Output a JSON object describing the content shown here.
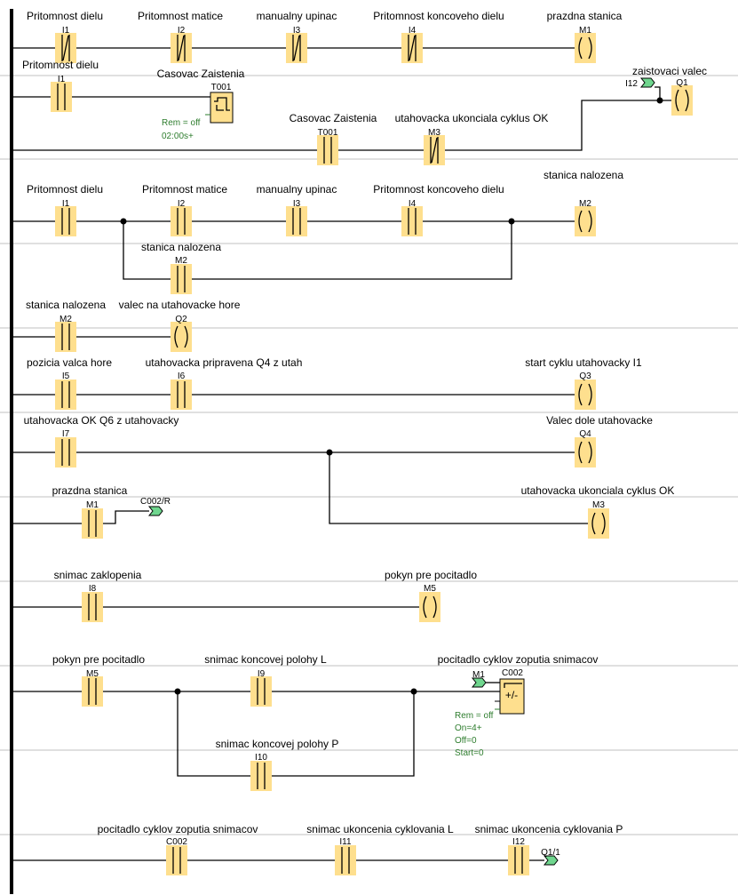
{
  "colors": {
    "element_fill": "#fedf8e",
    "connector_fill": "#6fd68e",
    "parameter_text": "#2e7d2e",
    "separator": "#c0c0c0"
  },
  "rungs": [
    {
      "elements": [
        {
          "kind": "contact-nc",
          "address": "I1",
          "label": "Pritomnost dielu"
        },
        {
          "kind": "contact-nc",
          "address": "I2",
          "label": "Pritomnost matice"
        },
        {
          "kind": "contact-nc",
          "address": "I3",
          "label": "manualny upinac"
        },
        {
          "kind": "contact-nc",
          "address": "I4",
          "label": "Pritomnost koncoveho dielu"
        },
        {
          "kind": "coil",
          "address": "M1",
          "label": "prazdna stanica"
        }
      ]
    },
    {
      "elements": [
        {
          "kind": "contact-no",
          "address": "I1",
          "label": "Pritomnost dielu"
        },
        {
          "kind": "timer",
          "address": "T001",
          "label": "Casovac Zaistenia",
          "params": [
            "Rem = off",
            "02:00s+"
          ]
        }
      ]
    },
    {
      "elements": [
        {
          "kind": "contact-no",
          "address": "T001",
          "label": "Casovac Zaistenia"
        },
        {
          "kind": "contact-nc",
          "address": "M3",
          "label": "utahovacka ukonciala cyklus OK"
        },
        {
          "kind": "connector",
          "address": "I12"
        },
        {
          "kind": "coil",
          "address": "Q1",
          "label": "zaistovaci valec"
        }
      ]
    },
    {
      "elements": [
        {
          "kind": "contact-no",
          "address": "I1",
          "label": "Pritomnost dielu"
        },
        {
          "kind": "contact-no",
          "address": "I2",
          "label": "Pritomnost matice"
        },
        {
          "kind": "contact-no",
          "address": "I3",
          "label": "manualny upinac"
        },
        {
          "kind": "contact-no",
          "address": "I4",
          "label": "Pritomnost koncoveho dielu"
        },
        {
          "kind": "contact-no",
          "address": "M2",
          "label": "stanica nalozena"
        },
        {
          "kind": "coil",
          "address": "M2",
          "label": "stanica nalozena"
        }
      ]
    },
    {
      "elements": [
        {
          "kind": "contact-no",
          "address": "M2",
          "label": "stanica nalozena"
        },
        {
          "kind": "coil",
          "address": "Q2",
          "label": "valec na utahovacke hore"
        }
      ]
    },
    {
      "elements": [
        {
          "kind": "contact-no",
          "address": "I5",
          "label": "pozicia valca hore"
        },
        {
          "kind": "contact-no",
          "address": "I6",
          "label": "utahovacka pripravena Q4 z utah"
        },
        {
          "kind": "coil",
          "address": "Q3",
          "label": "start cyklu utahovacky I1"
        }
      ]
    },
    {
      "elements": [
        {
          "kind": "contact-no",
          "address": "I7",
          "label": "utahovacka OK Q6 z utahovacky"
        },
        {
          "kind": "coil",
          "address": "Q4",
          "label": "Valec dole utahovacke"
        },
        {
          "kind": "coil",
          "address": "M3",
          "label": "utahovacka ukonciala cyklus OK"
        }
      ]
    },
    {
      "elements": [
        {
          "kind": "contact-no",
          "address": "M1",
          "label": "prazdna stanica"
        },
        {
          "kind": "connector",
          "address": "C002/R"
        }
      ]
    },
    {
      "elements": [
        {
          "kind": "contact-no",
          "address": "I8",
          "label": "snimac zaklopenia"
        },
        {
          "kind": "coil",
          "address": "M5",
          "label": "pokyn pre pocitadlo"
        }
      ]
    },
    {
      "elements": [
        {
          "kind": "contact-no",
          "address": "M5",
          "label": "pokyn pre pocitadlo"
        },
        {
          "kind": "contact-no",
          "address": "I9",
          "label": "snimac koncovej polohy L"
        },
        {
          "kind": "contact-no",
          "address": "I10",
          "label": "snimac koncovej polohy P"
        },
        {
          "kind": "connector",
          "address": "M1"
        },
        {
          "kind": "counter",
          "address": "C002",
          "label": "pocitadlo cyklov zoputia snimacov",
          "params": [
            "Rem = off",
            "On=4+",
            "Off=0",
            "Start=0"
          ]
        }
      ]
    },
    {
      "elements": [
        {
          "kind": "contact-no",
          "address": "C002",
          "label": "pocitadlo cyklov zoputia snimacov"
        },
        {
          "kind": "contact-no",
          "address": "I11",
          "label": "snimac ukoncenia cyklovania L"
        },
        {
          "kind": "contact-no",
          "address": "I12",
          "label": "snimac ukoncenia cyklovania P"
        },
        {
          "kind": "connector",
          "address": "Q1/1"
        }
      ]
    }
  ]
}
